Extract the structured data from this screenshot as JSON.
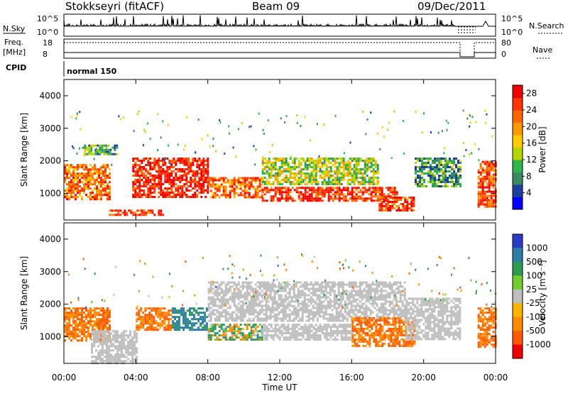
{
  "header": {
    "station": "Stokkseyri (fitACF)",
    "beam": "Beam 09",
    "date": "09/Dec/2011"
  },
  "status_panels": {
    "nsky_label": "N.Sky",
    "nsky_ticks": [
      "10^5",
      "10^0"
    ],
    "nsearch_label": "N.Search",
    "nsearch_ticks": [
      "10^5",
      "10^0"
    ],
    "freq_label": "Freq.",
    "freq_unit": "[MHz]",
    "freq_ticks": [
      "18",
      "8"
    ],
    "nave_label": "Nave",
    "nave_ticks": [
      "80",
      "0"
    ],
    "cpid_label": "CPID",
    "cpid_value": "normal 150"
  },
  "colors": {
    "power_scale": [
      "#0000ff",
      "#1e3fa0",
      "#3a8a60",
      "#2fb34a",
      "#b8d400",
      "#ffcc00",
      "#ff9900",
      "#ff6600",
      "#ff3300",
      "#ee0000"
    ],
    "velocity_scale": [
      "#2a3cc4",
      "#2e7fa8",
      "#2e9b50",
      "#73cc2e",
      "#bfbfbf",
      "#ffb400",
      "#ff8c00",
      "#ff5a00",
      "#ee0000"
    ],
    "ground_scatter": "#bfbfbf"
  },
  "chart_data": [
    {
      "type": "heatmap",
      "name": "power",
      "ylabel": "Slant Range [km]",
      "xlabel": "",
      "x_ticks": [
        "00:00",
        "04:00",
        "08:00",
        "12:00",
        "16:00",
        "20:00",
        "00:00"
      ],
      "y_ticks": [
        "1000",
        "2000",
        "3000",
        "4000"
      ],
      "ylim": [
        180,
        4500
      ],
      "xlim_hours": [
        0,
        24
      ],
      "colorbar_label": "Power [dB]",
      "colorbar_ticks": [
        "4",
        "8",
        "12",
        "16",
        "20",
        "24",
        "28"
      ],
      "colorbar_range": [
        0,
        30
      ],
      "regions": [
        {
          "t0": 0.0,
          "t1": 2.5,
          "r0": 850,
          "r1": 1900,
          "level": 22
        },
        {
          "t0": 1.0,
          "t1": 3.0,
          "r0": 2200,
          "r1": 2500,
          "level": 10
        },
        {
          "t0": 2.5,
          "t1": 5.5,
          "r0": 350,
          "r1": 500,
          "level": 26
        },
        {
          "t0": 3.8,
          "t1": 8.0,
          "r0": 900,
          "r1": 2100,
          "level": 27
        },
        {
          "t0": 8.0,
          "t1": 11.0,
          "r0": 850,
          "r1": 1500,
          "level": 22
        },
        {
          "t0": 11.0,
          "t1": 18.5,
          "r0": 800,
          "r1": 1200,
          "level": 26
        },
        {
          "t0": 11.0,
          "t1": 17.5,
          "r0": 1250,
          "r1": 2100,
          "level": 14
        },
        {
          "t0": 17.5,
          "t1": 19.5,
          "r0": 500,
          "r1": 900,
          "level": 25
        },
        {
          "t0": 19.5,
          "t1": 22.0,
          "r0": 1200,
          "r1": 2100,
          "level": 9
        },
        {
          "t0": 23.0,
          "t1": 24.0,
          "r0": 600,
          "r1": 2000,
          "level": 24
        }
      ]
    },
    {
      "type": "heatmap",
      "name": "velocity",
      "ylabel": "Slant Range [km]",
      "xlabel": "Time UT",
      "x_ticks": [
        "00:00",
        "04:00",
        "08:00",
        "12:00",
        "16:00",
        "20:00",
        "00:00"
      ],
      "y_ticks": [
        "1000",
        "2000",
        "3000",
        "4000"
      ],
      "ylim": [
        180,
        4500
      ],
      "xlim_hours": [
        0,
        24
      ],
      "colorbar_label": "Velocity [m s⁻¹]",
      "colorbar_ticks": [
        "1000",
        "500",
        "100",
        "25",
        "-25",
        "-100",
        "-500",
        "-1000"
      ],
      "regions": [
        {
          "t0": 0.0,
          "t1": 2.5,
          "r0": 900,
          "r1": 1900,
          "level": -300
        },
        {
          "t0": 1.5,
          "t1": 4.0,
          "r0": 200,
          "r1": 1200,
          "level": 0
        },
        {
          "t0": 4.0,
          "t1": 6.0,
          "r0": 1200,
          "r1": 1900,
          "level": -300
        },
        {
          "t0": 6.0,
          "t1": 8.0,
          "r0": 1200,
          "r1": 1900,
          "level": 400
        },
        {
          "t0": 8.0,
          "t1": 11.0,
          "r0": 900,
          "r1": 1400,
          "level": 80
        },
        {
          "t0": 8.0,
          "t1": 19.0,
          "r0": 1500,
          "r1": 2700,
          "level": 0
        },
        {
          "t0": 11.0,
          "t1": 16.0,
          "r0": 900,
          "r1": 1400,
          "level": 0
        },
        {
          "t0": 16.0,
          "t1": 19.5,
          "r0": 700,
          "r1": 1600,
          "level": -300
        },
        {
          "t0": 19.0,
          "t1": 22.0,
          "r0": 900,
          "r1": 2200,
          "level": 0
        },
        {
          "t0": 23.0,
          "t1": 24.0,
          "r0": 700,
          "r1": 1900,
          "level": -300
        }
      ]
    }
  ]
}
